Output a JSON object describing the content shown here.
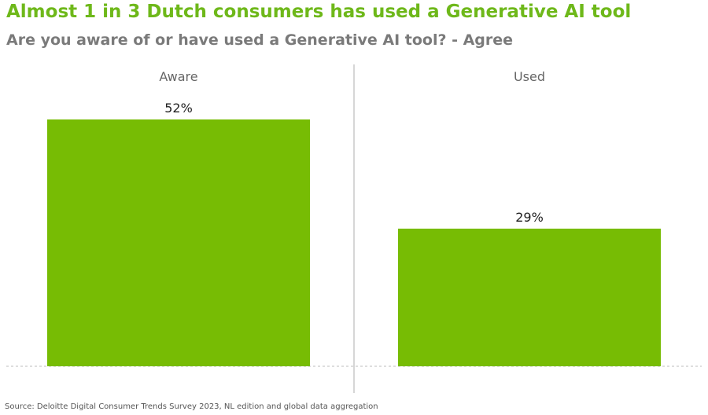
{
  "chart_data": {
    "type": "bar",
    "title": "Almost 1 in 3 Dutch consumers has used a Generative AI tool",
    "subtitle": "Are you aware of or have used a Generative AI tool? - Agree",
    "categories": [
      "Aware",
      "Used"
    ],
    "values": [
      52,
      29
    ],
    "value_labels": [
      "52%",
      "29%"
    ],
    "ylim": [
      0,
      100
    ],
    "grid": false,
    "bar_color": "#77bc04",
    "source": "Source: Deloitte Digital Consumer Trends Survey 2023, NL edition and global data aggregation"
  }
}
